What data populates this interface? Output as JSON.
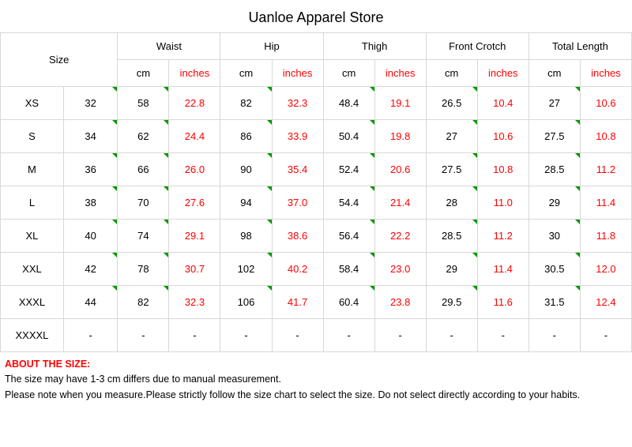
{
  "title": "Uanloe Apparel Store",
  "colors": {
    "border": "#d8d8d8",
    "text": "#000000",
    "inches": "#ff0000",
    "tri": "#009a00",
    "bg": "#ffffff"
  },
  "headers": {
    "size": "Size",
    "measurements": [
      "Waist",
      "Hip",
      "Thigh",
      "Front Crotch",
      "Total Length"
    ],
    "sub_cm": "cm",
    "sub_in": "inches"
  },
  "rows": [
    {
      "size": "XS",
      "num": "32",
      "waist_cm": "58",
      "waist_in": "22.8",
      "hip_cm": "82",
      "hip_in": "32.3",
      "thigh_cm": "48.4",
      "thigh_in": "19.1",
      "crotch_cm": "26.5",
      "crotch_in": "10.4",
      "len_cm": "27",
      "len_in": "10.6"
    },
    {
      "size": "S",
      "num": "34",
      "waist_cm": "62",
      "waist_in": "24.4",
      "hip_cm": "86",
      "hip_in": "33.9",
      "thigh_cm": "50.4",
      "thigh_in": "19.8",
      "crotch_cm": "27",
      "crotch_in": "10.6",
      "len_cm": "27.5",
      "len_in": "10.8"
    },
    {
      "size": "M",
      "num": "36",
      "waist_cm": "66",
      "waist_in": "26.0",
      "hip_cm": "90",
      "hip_in": "35.4",
      "thigh_cm": "52.4",
      "thigh_in": "20.6",
      "crotch_cm": "27.5",
      "crotch_in": "10.8",
      "len_cm": "28.5",
      "len_in": "11.2"
    },
    {
      "size": "L",
      "num": "38",
      "waist_cm": "70",
      "waist_in": "27.6",
      "hip_cm": "94",
      "hip_in": "37.0",
      "thigh_cm": "54.4",
      "thigh_in": "21.4",
      "crotch_cm": "28",
      "crotch_in": "11.0",
      "len_cm": "29",
      "len_in": "11.4"
    },
    {
      "size": "XL",
      "num": "40",
      "waist_cm": "74",
      "waist_in": "29.1",
      "hip_cm": "98",
      "hip_in": "38.6",
      "thigh_cm": "56.4",
      "thigh_in": "22.2",
      "crotch_cm": "28.5",
      "crotch_in": "11.2",
      "len_cm": "30",
      "len_in": "11.8"
    },
    {
      "size": "XXL",
      "num": "42",
      "waist_cm": "78",
      "waist_in": "30.7",
      "hip_cm": "102",
      "hip_in": "40.2",
      "thigh_cm": "58.4",
      "thigh_in": "23.0",
      "crotch_cm": "29",
      "crotch_in": "11.4",
      "len_cm": "30.5",
      "len_in": "12.0"
    },
    {
      "size": "XXXL",
      "num": "44",
      "waist_cm": "82",
      "waist_in": "32.3",
      "hip_cm": "106",
      "hip_in": "41.7",
      "thigh_cm": "60.4",
      "thigh_in": "23.8",
      "crotch_cm": "29.5",
      "crotch_in": "11.6",
      "len_cm": "31.5",
      "len_in": "12.4"
    },
    {
      "size": "XXXXL",
      "num": "-",
      "waist_cm": "-",
      "waist_in": "-",
      "hip_cm": "-",
      "hip_in": "-",
      "thigh_cm": "-",
      "thigh_in": "-",
      "crotch_cm": "-",
      "crotch_in": "-",
      "len_cm": "-",
      "len_in": "-"
    }
  ],
  "note": {
    "header": "ABOUT THE SIZE:",
    "line1": "The size may have 1-3 cm differs due to manual measurement.",
    "line2": "Please note when you measure.Please strictly follow the size chart  to select the size. Do not select directly according to your habits."
  }
}
